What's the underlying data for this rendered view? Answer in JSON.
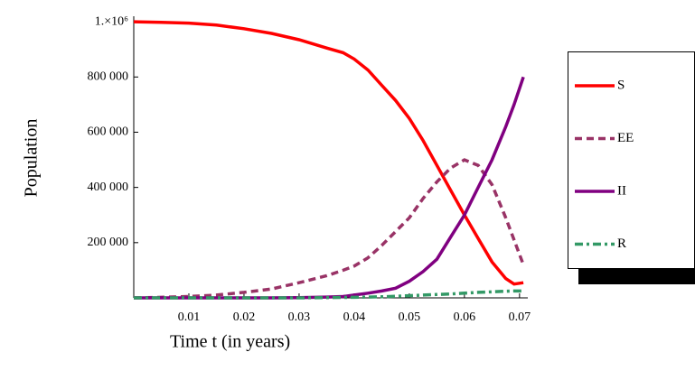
{
  "chart_data": {
    "type": "line",
    "x_label": "Time t (in years)",
    "y_label": "Population",
    "x": [
      0,
      0.005,
      0.01,
      0.015,
      0.02,
      0.025,
      0.03,
      0.035,
      0.038,
      0.04,
      0.0425,
      0.045,
      0.0475,
      0.05,
      0.0525,
      0.055,
      0.0575,
      0.06,
      0.0625,
      0.065,
      0.0675,
      0.069,
      0.0707
    ],
    "series": [
      {
        "name": "S",
        "color": "#ff0000",
        "style": "solid",
        "values": [
          1000000,
          998000,
          995000,
          988000,
          975000,
          958000,
          935000,
          905000,
          888000,
          865000,
          825000,
          770000,
          715000,
          650000,
          570000,
          480000,
          390000,
          300000,
          215000,
          130000,
          70000,
          50000,
          55000
        ]
      },
      {
        "name": "EE",
        "color": "#993366",
        "style": "dashed",
        "values": [
          0,
          2000,
          5000,
          10000,
          20000,
          32000,
          55000,
          80000,
          100000,
          115000,
          145000,
          190000,
          240000,
          290000,
          360000,
          420000,
          470000,
          500000,
          480000,
          410000,
          290000,
          210000,
          120000
        ]
      },
      {
        "name": "II",
        "color": "#800080",
        "style": "solid",
        "values": [
          0,
          0,
          0,
          0,
          0,
          0,
          1000,
          3000,
          5000,
          10000,
          17000,
          25000,
          35000,
          60000,
          95000,
          140000,
          220000,
          300000,
          400000,
          500000,
          620000,
          700000,
          800000
        ]
      },
      {
        "name": "R",
        "color": "#339966",
        "style": "dashdot",
        "values": [
          0,
          0,
          0,
          0,
          0,
          0,
          0,
          1000,
          1500,
          2000,
          3000,
          4000,
          6000,
          8000,
          10000,
          12000,
          14000,
          17000,
          20000,
          22000,
          24000,
          25000,
          25000
        ]
      }
    ],
    "xlim": [
      0,
      0.0715
    ],
    "ylim": [
      0,
      1020000
    ],
    "xticks": [
      0.01,
      0.02,
      0.03,
      0.04,
      0.05,
      0.06,
      0.07
    ],
    "yticks": [
      {
        "value": 200000,
        "label": "200 000"
      },
      {
        "value": 400000,
        "label": "400 000"
      },
      {
        "value": 600000,
        "label": "600 000"
      },
      {
        "value": 800000,
        "label": "800 000"
      },
      {
        "value": 1000000,
        "label": "1.×10⁶"
      }
    ],
    "legend": "right"
  }
}
